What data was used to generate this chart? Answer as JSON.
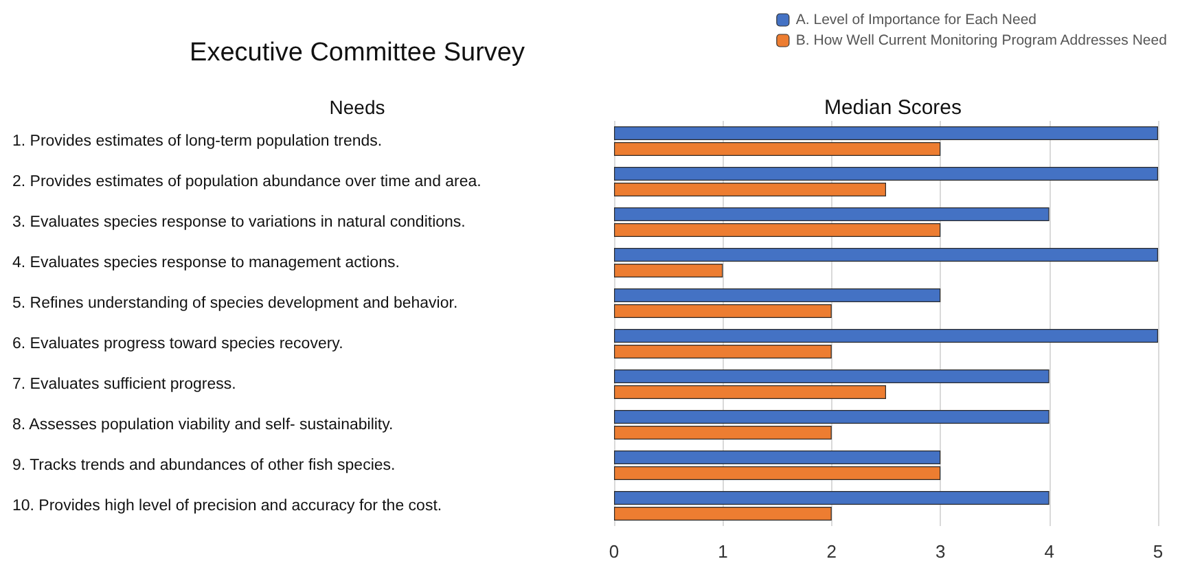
{
  "chart_data": {
    "type": "bar",
    "orientation": "horizontal",
    "title": "Executive Committee Survey",
    "subtitle": "Median Scores",
    "ylabel": "Needs",
    "categories": [
      "1. Provides estimates of long-term population trends.",
      "2. Provides estimates of population abundance over time and area.",
      "3. Evaluates species response to variations in natural conditions.",
      "4. Evaluates species response to management actions.",
      "5. Refines understanding of species development and behavior.",
      "6. Evaluates progress toward species recovery.",
      "7. Evaluates sufficient progress.",
      "8. Assesses population viability and self- sustainability.",
      "9. Tracks trends and abundances of other fish species.",
      "10. Provides high level of precision and accuracy for the cost."
    ],
    "series": [
      {
        "name": "A. Level of Importance for Each Need",
        "color": "#4472c4",
        "values": [
          5,
          5,
          4,
          5,
          3,
          5,
          4,
          4,
          3,
          4
        ]
      },
      {
        "name": "B. How Well Current Monitoring Program Addresses Need",
        "color": "#ed7d31",
        "values": [
          3,
          2.5,
          3,
          1,
          2,
          2,
          2.5,
          2,
          3,
          2
        ]
      }
    ],
    "xlim": [
      0,
      5
    ],
    "xticks": [
      0,
      1,
      2,
      3,
      4,
      5
    ],
    "grid": "x",
    "legend": "top right"
  }
}
